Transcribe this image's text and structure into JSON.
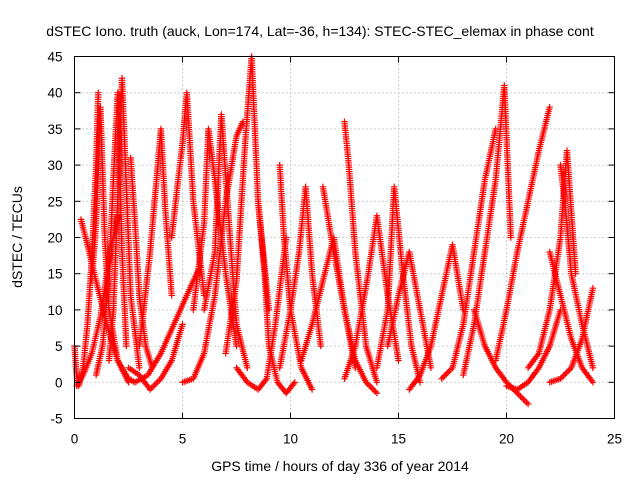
{
  "chart_data": {
    "type": "scatter",
    "title": "dSTEC Iono. truth (auck, Lon=174, Lat=-36, h=134): STEC-STEC_elemax in phase cont",
    "xlabel": "GPS time / hours of day 336 of year 2014",
    "ylabel": "dSTEC  / TECUs",
    "xlim": [
      0,
      25
    ],
    "ylim": [
      -5,
      45
    ],
    "xticks": [
      0,
      5,
      10,
      15,
      20,
      25
    ],
    "yticks": [
      -5,
      0,
      5,
      10,
      15,
      20,
      25,
      30,
      35,
      40,
      45
    ],
    "grid": true,
    "marker": "+",
    "color": "#ff0000",
    "series": [
      {
        "x": [
          0.0,
          0.1,
          0.2,
          0.4,
          0.6,
          0.8,
          1.0,
          1.1
        ],
        "y": [
          5.0,
          1.0,
          -0.5,
          2.0,
          8.0,
          17.0,
          30.0,
          40.0
        ]
      },
      {
        "x": [
          0.1,
          0.4,
          0.8,
          1.2,
          1.6,
          2.0
        ],
        "y": [
          -0.5,
          1.0,
          4.0,
          9.0,
          17.0,
          23.0
        ]
      },
      {
        "x": [
          0.3,
          0.6,
          1.0,
          1.5,
          2.0,
          2.5,
          2.8
        ],
        "y": [
          22.5,
          19.0,
          14.0,
          8.0,
          3.0,
          0.5,
          0.0
        ]
      },
      {
        "x": [
          0.8,
          1.0,
          1.2,
          1.4,
          1.6,
          2.0,
          2.5
        ],
        "y": [
          14.0,
          22.0,
          38.0,
          20.0,
          10.0,
          3.0,
          0.0
        ]
      },
      {
        "x": [
          1.0,
          1.3,
          1.6,
          1.8,
          2.0,
          2.2,
          2.4
        ],
        "y": [
          1.0,
          5.0,
          15.0,
          28.0,
          40.0,
          18.0,
          5.0
        ]
      },
      {
        "x": [
          1.6,
          1.8,
          2.0,
          2.2,
          2.6,
          3.0
        ],
        "y": [
          3.0,
          10.0,
          25.0,
          42.0,
          12.0,
          2.0
        ]
      },
      {
        "x": [
          2.6,
          2.8,
          3.0,
          3.3,
          3.6
        ],
        "y": [
          31.0,
          22.0,
          12.0,
          5.0,
          2.0
        ]
      },
      {
        "x": [
          2.8,
          3.4,
          4.0,
          4.6,
          5.2,
          5.8
        ],
        "y": [
          0.0,
          1.0,
          4.0,
          8.0,
          12.0,
          16.0
        ]
      },
      {
        "x": [
          3.0,
          3.2,
          3.5,
          3.8,
          4.0,
          4.2,
          4.5
        ],
        "y": [
          5.0,
          10.0,
          18.0,
          28.0,
          35.0,
          24.0,
          12.0
        ]
      },
      {
        "x": [
          2.5,
          3.0,
          3.5,
          4.0,
          4.5,
          5.0
        ],
        "y": [
          2.0,
          1.0,
          -1.0,
          0.5,
          3.0,
          8.0
        ]
      },
      {
        "x": [
          4.5,
          4.8,
          5.0,
          5.2,
          5.5,
          6.0
        ],
        "y": [
          20.0,
          28.0,
          33.0,
          40.0,
          25.0,
          12.0
        ]
      },
      {
        "x": [
          5.0,
          5.5,
          6.0,
          6.5,
          7.0,
          7.5,
          7.8
        ],
        "y": [
          0.0,
          0.5,
          4.0,
          12.0,
          25.0,
          34.0,
          36.0
        ]
      },
      {
        "x": [
          5.5,
          6.0,
          6.2,
          6.5,
          7.0,
          7.5
        ],
        "y": [
          10.0,
          22.0,
          35.0,
          28.0,
          15.0,
          5.0
        ]
      },
      {
        "x": [
          6.0,
          6.5,
          6.8,
          7.2,
          7.5,
          8.0
        ],
        "y": [
          10.0,
          18.0,
          37.0,
          20.0,
          8.0,
          2.0
        ]
      },
      {
        "x": [
          7.0,
          7.5,
          7.9,
          8.2,
          8.5,
          9.0
        ],
        "y": [
          4.0,
          14.0,
          33.0,
          45.0,
          25.0,
          10.0
        ]
      },
      {
        "x": [
          7.5,
          8.0,
          8.5,
          8.9,
          9.3,
          9.8
        ],
        "y": [
          2.0,
          0.0,
          -1.0,
          0.5,
          8.0,
          20.0
        ]
      },
      {
        "x": [
          8.5,
          8.8,
          9.0,
          9.4,
          9.8,
          10.2
        ],
        "y": [
          25.0,
          15.0,
          5.0,
          0.0,
          -1.5,
          0.0
        ]
      },
      {
        "x": [
          9.5,
          9.7,
          10.0,
          10.5,
          11.0
        ],
        "y": [
          30.0,
          20.0,
          10.0,
          2.0,
          -1.0
        ]
      },
      {
        "x": [
          9.5,
          10.0,
          10.4,
          10.7,
          11.0,
          11.4
        ],
        "y": [
          2.0,
          10.0,
          18.0,
          27.0,
          15.0,
          5.0
        ]
      },
      {
        "x": [
          10.5,
          11.0,
          11.5,
          12.0,
          12.5,
          13.0
        ],
        "y": [
          3.0,
          8.0,
          14.0,
          20.0,
          10.0,
          2.0
        ]
      },
      {
        "x": [
          11.5,
          12.0,
          12.5,
          13.0,
          13.5,
          14.0
        ],
        "y": [
          27.0,
          18.0,
          10.0,
          3.0,
          0.0,
          -1.5
        ]
      },
      {
        "x": [
          12.5,
          12.7,
          13.0,
          13.5,
          14.0
        ],
        "y": [
          36.0,
          30.0,
          18.0,
          5.0,
          0.0
        ]
      },
      {
        "x": [
          12.5,
          13.0,
          13.6,
          14.0,
          14.5,
          15.0
        ],
        "y": [
          0.5,
          5.0,
          15.0,
          23.0,
          12.0,
          3.0
        ]
      },
      {
        "x": [
          14.0,
          14.5,
          14.8,
          15.2,
          15.6,
          16.0
        ],
        "y": [
          2.0,
          10.0,
          27.0,
          15.0,
          5.0,
          0.0
        ]
      },
      {
        "x": [
          14.5,
          15.0,
          15.5,
          16.0,
          16.5
        ],
        "y": [
          5.0,
          12.0,
          18.0,
          10.0,
          2.0
        ]
      },
      {
        "x": [
          15.5,
          16.0,
          16.5,
          17.0,
          17.5,
          18.0
        ],
        "y": [
          -1.0,
          1.0,
          5.0,
          12.0,
          19.0,
          10.0
        ]
      },
      {
        "x": [
          17.0,
          17.5,
          18.0,
          18.5,
          19.0,
          19.5
        ],
        "y": [
          0.5,
          2.0,
          8.0,
          18.0,
          28.0,
          35.0
        ]
      },
      {
        "x": [
          18.0,
          18.5,
          19.0,
          19.5,
          19.9,
          20.2
        ],
        "y": [
          1.0,
          8.0,
          18.0,
          28.0,
          41.0,
          20.0
        ]
      },
      {
        "x": [
          18.5,
          19.0,
          19.5,
          20.0,
          20.5,
          21.0
        ],
        "y": [
          10.0,
          5.0,
          2.0,
          0.0,
          -1.5,
          -3.0
        ]
      },
      {
        "x": [
          19.5,
          20.0,
          20.5,
          21.0,
          21.5,
          22.0
        ],
        "y": [
          3.0,
          10.0,
          18.0,
          25.0,
          32.0,
          38.0
        ]
      },
      {
        "x": [
          20.0,
          20.5,
          21.0,
          21.5,
          22.0,
          22.5
        ],
        "y": [
          -0.5,
          -1.0,
          0.0,
          2.0,
          5.0,
          10.0
        ]
      },
      {
        "x": [
          21.0,
          21.5,
          22.0,
          22.5,
          22.8,
          23.2
        ],
        "y": [
          2.0,
          4.0,
          10.0,
          20.0,
          32.0,
          15.0
        ]
      },
      {
        "x": [
          22.0,
          22.5,
          23.0,
          23.5,
          24.0
        ],
        "y": [
          18.0,
          12.0,
          6.0,
          2.0,
          0.0
        ]
      },
      {
        "x": [
          22.5,
          22.7,
          23.0,
          23.5,
          24.0
        ],
        "y": [
          30.0,
          25.0,
          15.0,
          8.0,
          2.0
        ]
      },
      {
        "x": [
          22.0,
          22.5,
          23.0,
          23.5,
          24.0
        ],
        "y": [
          0.0,
          0.5,
          2.0,
          6.0,
          13.0
        ]
      }
    ]
  }
}
